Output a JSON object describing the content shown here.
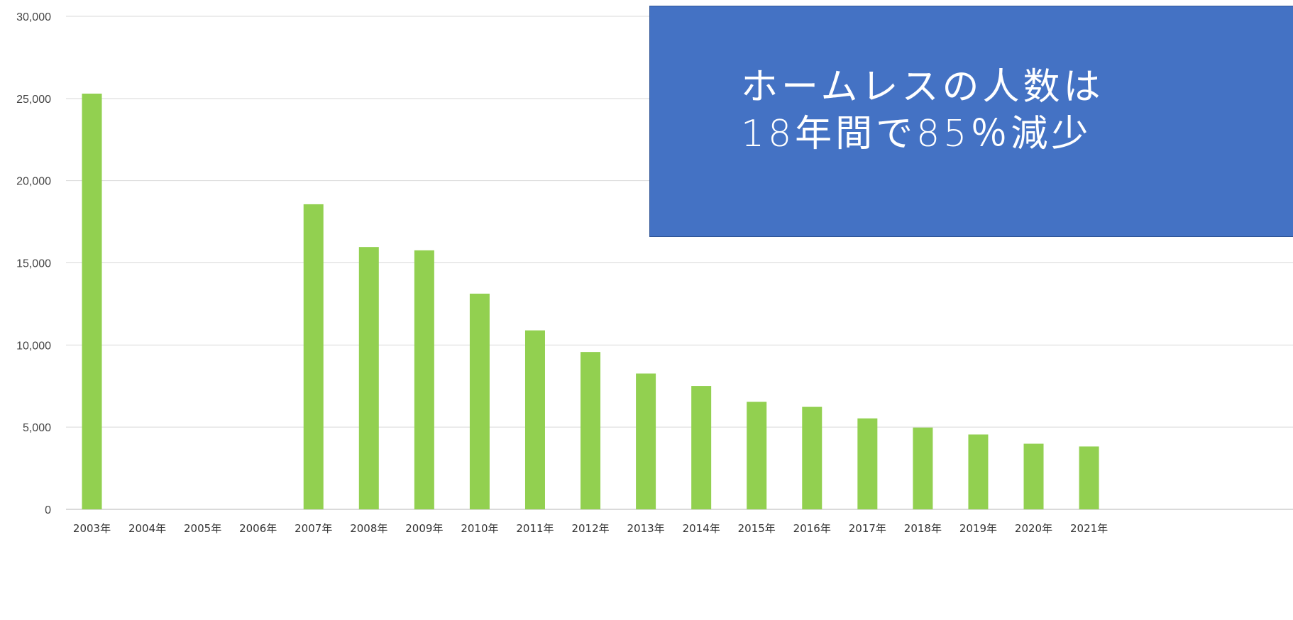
{
  "chart_data": {
    "type": "bar",
    "categories": [
      "2003年",
      "2004年",
      "2005年",
      "2006年",
      "2007年",
      "2008年",
      "2009年",
      "2010年",
      "2011年",
      "2012年",
      "2013年",
      "2014年",
      "2015年",
      "2016年",
      "2017年",
      "2018年",
      "2019年",
      "2020年",
      "2021年"
    ],
    "values": [
      25296,
      null,
      null,
      null,
      18564,
      15964,
      15759,
      13124,
      10890,
      9576,
      8265,
      7508,
      6541,
      6235,
      5534,
      4977,
      4555,
      3992,
      3824
    ],
    "ylim": [
      0,
      30000
    ],
    "yticks": [
      "0",
      "5,000",
      "10,000",
      "15,000",
      "20,000",
      "25,000",
      "30,000"
    ],
    "ytick_values": [
      0,
      5000,
      10000,
      15000,
      20000,
      25000,
      30000
    ],
    "bar_color": "#92d050",
    "grid": true,
    "annotation": {
      "line1": "ホームレスの人数は",
      "line2": "18年間で85％減少",
      "background": "#4472c4"
    }
  }
}
